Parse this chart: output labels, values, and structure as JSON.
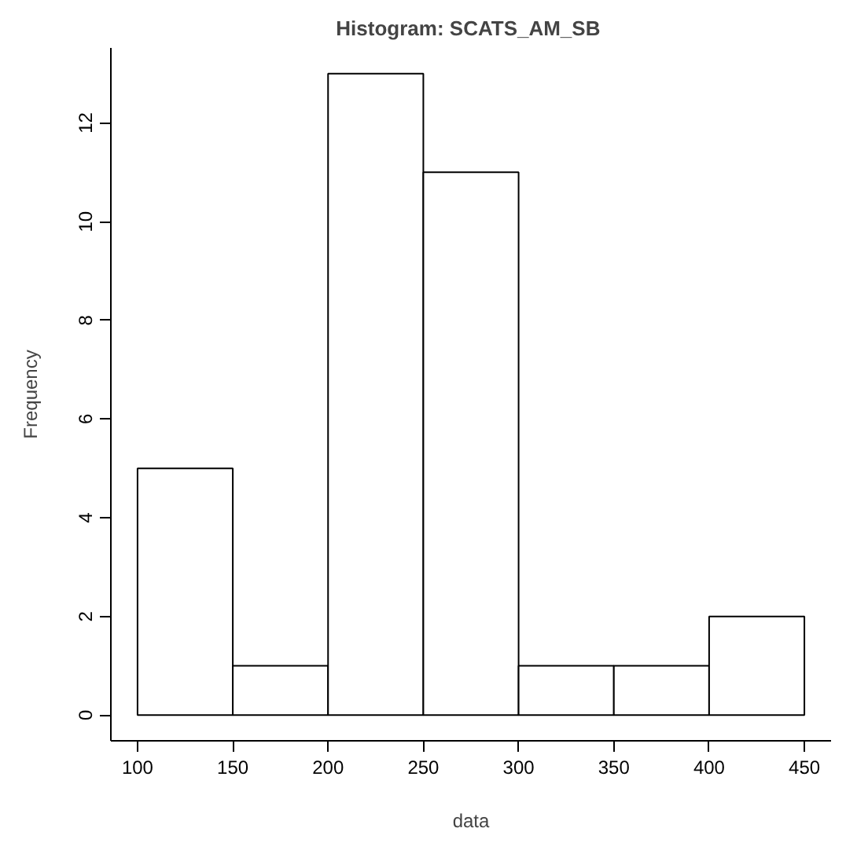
{
  "chart_data": {
    "type": "histogram",
    "title": "Histogram:  SCATS_AM_SB",
    "xlabel": "data",
    "ylabel": "Frequency",
    "bins": [
      100,
      150,
      200,
      250,
      300,
      350,
      400,
      450
    ],
    "values": [
      5,
      1,
      13,
      11,
      1,
      1,
      2
    ],
    "color": "#ffffff",
    "xlim": [
      86,
      464
    ],
    "ylim": [
      -0.52,
      13.52
    ],
    "xticks": [
      100,
      150,
      200,
      250,
      300,
      350,
      400,
      450
    ],
    "yticks": [
      0,
      2,
      4,
      6,
      8,
      10,
      12
    ],
    "grid": false
  }
}
